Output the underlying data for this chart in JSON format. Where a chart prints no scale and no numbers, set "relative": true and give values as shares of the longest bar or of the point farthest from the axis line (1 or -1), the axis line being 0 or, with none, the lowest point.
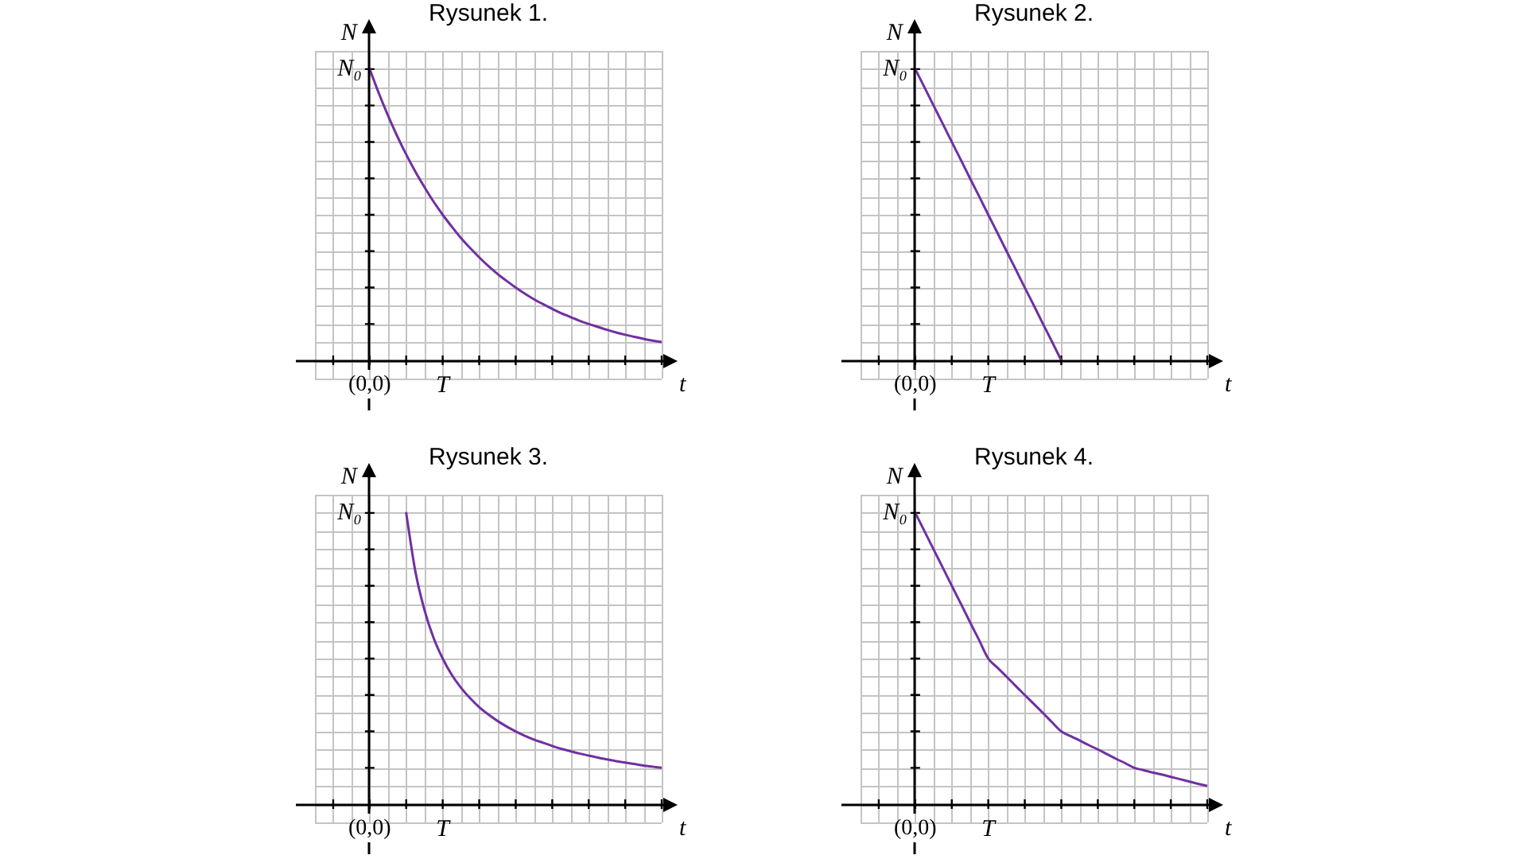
{
  "chart_data": [
    {
      "type": "line",
      "title": "Rysunek 1.",
      "xlabel": "t",
      "ylabel": "N",
      "color": "#7030a0",
      "marker": "none",
      "grid": true,
      "relative": true,
      "categories": [
        "(0,0)",
        null,
        null,
        null,
        null,
        null,
        null,
        null,
        "T",
        null,
        null,
        null,
        null,
        null,
        null,
        null,
        null,
        null,
        null,
        null,
        null,
        null,
        null,
        null,
        null,
        null,
        null,
        null,
        null,
        null,
        null,
        null,
        null
      ],
      "values": [
        1,
        0.917,
        0.841,
        0.771,
        0.707,
        0.648,
        0.595,
        0.545,
        0.5,
        0.459,
        0.42,
        0.386,
        0.354,
        0.324,
        0.297,
        0.273,
        0.25,
        0.229,
        0.21,
        0.193,
        0.177,
        0.162,
        0.149,
        0.136,
        0.125,
        0.115,
        0.105,
        0.096,
        0.088,
        0.081,
        0.074,
        0.068,
        0.063
      ],
      "annotations": [
        "N₀"
      ]
    },
    {
      "type": "line",
      "title": "Rysunek 2.",
      "xlabel": "t",
      "ylabel": "N",
      "color": "#7030a0",
      "marker": "none",
      "grid": true,
      "relative": true,
      "categories": [
        "(0,0)",
        null,
        null,
        null,
        null,
        null,
        null,
        null,
        "T",
        null,
        null,
        null,
        null,
        null,
        null,
        null,
        null,
        null,
        null,
        null,
        null,
        null,
        null,
        null,
        null,
        null,
        null,
        null,
        null,
        null,
        null,
        null,
        null
      ],
      "values": [
        1,
        0.938,
        0.875,
        0.813,
        0.75,
        0.688,
        0.625,
        0.563,
        0.5,
        0.438,
        0.375,
        0.313,
        0.25,
        0.188,
        0.125,
        0.063,
        0,
        null,
        null,
        null,
        null,
        null,
        null,
        null,
        null,
        null,
        null,
        null,
        null,
        null,
        null,
        null,
        null
      ],
      "annotations": [
        "N₀"
      ]
    },
    {
      "type": "line",
      "title": "Rysunek 3.",
      "xlabel": "t",
      "ylabel": "N",
      "color": "#7030a0",
      "marker": "none",
      "grid": true,
      "relative": true,
      "categories": [
        "(0,0)",
        null,
        null,
        null,
        null,
        null,
        null,
        null,
        "T",
        null,
        null,
        null,
        null,
        null,
        null,
        null,
        null,
        null,
        null,
        null,
        null,
        null,
        null,
        null,
        null,
        null,
        null,
        null,
        null,
        null,
        null,
        null,
        null
      ],
      "values": [
        null,
        null,
        null,
        null,
        1,
        0.8,
        0.667,
        0.571,
        0.5,
        0.444,
        0.4,
        0.364,
        0.333,
        0.308,
        0.286,
        0.267,
        0.25,
        0.235,
        0.222,
        0.211,
        0.2,
        0.19,
        0.182,
        0.174,
        0.167,
        0.16,
        0.154,
        0.148,
        0.143,
        0.138,
        0.133,
        0.129,
        0.125
      ],
      "annotations": [
        "N₀"
      ]
    },
    {
      "type": "line",
      "title": "Rysunek 4.",
      "xlabel": "t",
      "ylabel": "N",
      "color": "#7030a0",
      "marker": "none",
      "grid": true,
      "relative": true,
      "categories": [
        "(0,0)",
        null,
        null,
        null,
        null,
        null,
        null,
        null,
        "T",
        null,
        null,
        null,
        null,
        null,
        null,
        null,
        null,
        null,
        null,
        null,
        null,
        null,
        null,
        null,
        null,
        null,
        null,
        null,
        null,
        null,
        null,
        null,
        null
      ],
      "values": [
        1,
        0.938,
        0.875,
        0.813,
        0.75,
        0.688,
        0.625,
        0.563,
        0.5,
        0.469,
        0.438,
        0.406,
        0.375,
        0.344,
        0.313,
        0.281,
        0.25,
        0.234,
        0.219,
        0.203,
        0.188,
        0.172,
        0.156,
        0.141,
        0.125,
        0.117,
        0.109,
        0.102,
        0.094,
        0.086,
        0.078,
        0.07,
        0.063
      ],
      "annotations": [
        "N₀"
      ]
    }
  ]
}
